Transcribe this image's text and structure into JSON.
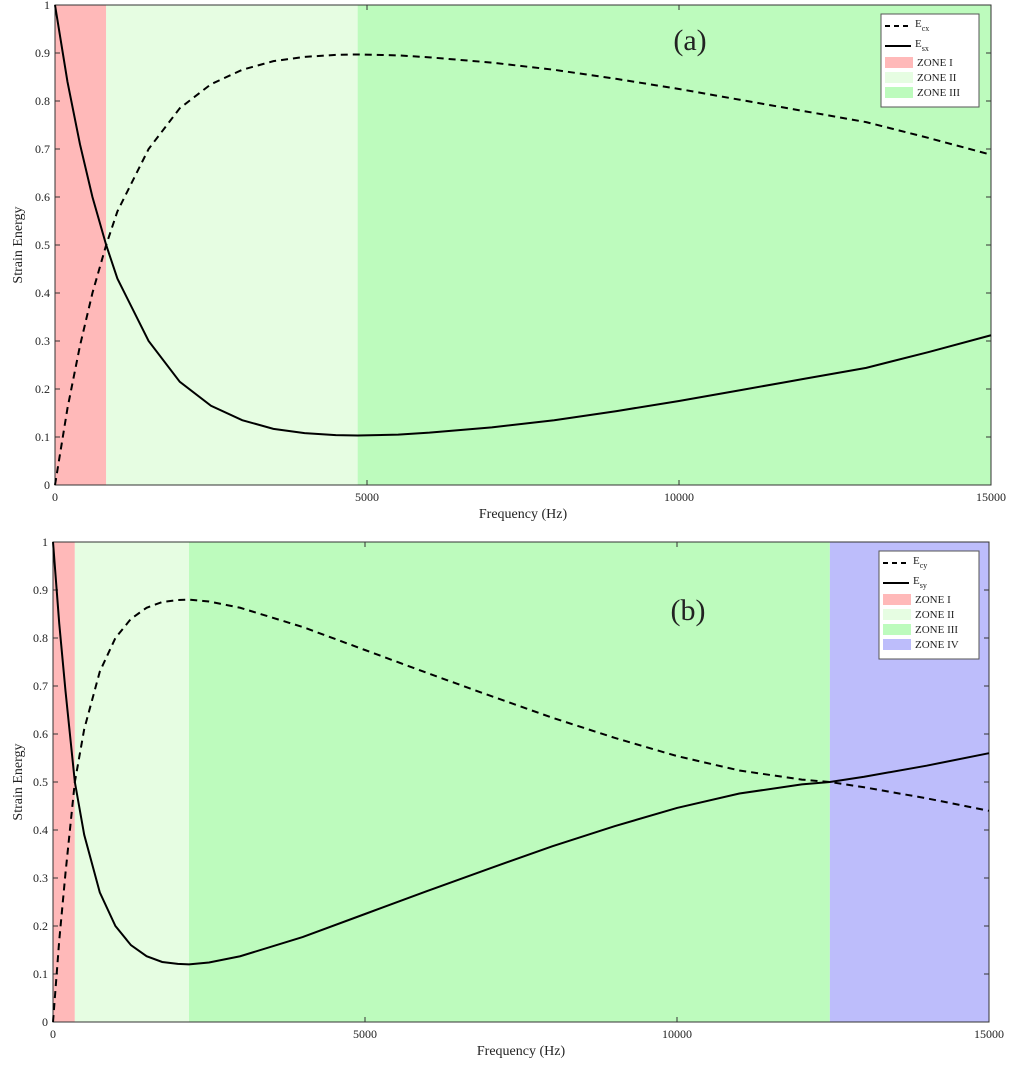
{
  "chart_data": [
    {
      "type": "line",
      "panel_label": "(a)",
      "xlabel": "Frequency (Hz)",
      "ylabel": "Strain Energy",
      "xlim": [
        0,
        15000
      ],
      "ylim": [
        0,
        1
      ],
      "x_ticks": [
        0,
        5000,
        10000,
        15000
      ],
      "x_tick_labels": [
        "0",
        "5000",
        "10000",
        "15000"
      ],
      "y_ticks": [
        0,
        0.1,
        0.2,
        0.3,
        0.4,
        0.5,
        0.6,
        0.7,
        0.8,
        0.9,
        1
      ],
      "y_tick_labels": [
        "0",
        "0.1",
        "0.2",
        "0.3",
        "0.4",
        "0.5",
        "0.6",
        "0.7",
        "0.8",
        "0.9",
        "1"
      ],
      "grid": false,
      "legend_position": "top-right",
      "zones": [
        {
          "name": "ZONE I",
          "x_start": 0,
          "x_end": 820,
          "color": "#ffb9b9"
        },
        {
          "name": "ZONE II",
          "x_start": 820,
          "x_end": 4850,
          "color": "#e6fde2"
        },
        {
          "name": "ZONE III",
          "x_start": 4850,
          "x_end": 15000,
          "color": "#bdfbbd"
        }
      ],
      "series": [
        {
          "name": "E",
          "sub": "cx",
          "style": "dashed",
          "color": "#000000",
          "x": [
            0,
            200,
            400,
            600,
            820,
            1000,
            1500,
            2000,
            2500,
            3000,
            3500,
            4000,
            4500,
            4850,
            5500,
            6000,
            7000,
            8000,
            9000,
            10000,
            11000,
            12000,
            13000,
            14000,
            15000
          ],
          "y": [
            0,
            0.16,
            0.29,
            0.4,
            0.5,
            0.57,
            0.7,
            0.785,
            0.835,
            0.865,
            0.883,
            0.892,
            0.896,
            0.897,
            0.895,
            0.891,
            0.88,
            0.865,
            0.846,
            0.825,
            0.802,
            0.779,
            0.756,
            0.723,
            0.688
          ]
        },
        {
          "name": "E",
          "sub": "sx",
          "style": "solid",
          "color": "#000000",
          "x": [
            0,
            200,
            400,
            600,
            820,
            1000,
            1500,
            2000,
            2500,
            3000,
            3500,
            4000,
            4500,
            4850,
            5500,
            6000,
            7000,
            8000,
            9000,
            10000,
            11000,
            12000,
            13000,
            14000,
            15000
          ],
          "y": [
            1,
            0.84,
            0.71,
            0.6,
            0.5,
            0.43,
            0.3,
            0.215,
            0.165,
            0.135,
            0.117,
            0.108,
            0.104,
            0.103,
            0.105,
            0.109,
            0.12,
            0.135,
            0.154,
            0.175,
            0.198,
            0.221,
            0.244,
            0.277,
            0.312
          ]
        }
      ]
    },
    {
      "type": "line",
      "panel_label": "(b)",
      "xlabel": "Frequency (Hz)",
      "ylabel": "Strain Energy",
      "xlim": [
        0,
        15000
      ],
      "ylim": [
        0,
        1
      ],
      "x_ticks": [
        0,
        5000,
        10000,
        15000
      ],
      "x_tick_labels": [
        "0",
        "5000",
        "10000",
        "15000"
      ],
      "y_ticks": [
        0,
        0.1,
        0.2,
        0.3,
        0.4,
        0.5,
        0.6,
        0.7,
        0.8,
        0.9,
        1
      ],
      "y_tick_labels": [
        "0",
        "0.1",
        "0.2",
        "0.3",
        "0.4",
        "0.5",
        "0.6",
        "0.7",
        "0.8",
        "0.9",
        "1"
      ],
      "grid": false,
      "legend_position": "top-right",
      "zones": [
        {
          "name": "ZONE I",
          "x_start": 0,
          "x_end": 350,
          "color": "#ffb9b9"
        },
        {
          "name": "ZONE II",
          "x_start": 350,
          "x_end": 2180,
          "color": "#e6fde2"
        },
        {
          "name": "ZONE III",
          "x_start": 2180,
          "x_end": 12450,
          "color": "#bdfbbd"
        },
        {
          "name": "ZONE IV",
          "x_start": 12450,
          "x_end": 15000,
          "color": "#bdbdfb"
        }
      ],
      "series": [
        {
          "name": "E",
          "sub": "cy",
          "style": "dashed",
          "color": "#000000",
          "x": [
            0,
            100,
            200,
            350,
            500,
            750,
            1000,
            1250,
            1500,
            1750,
            2000,
            2180,
            2500,
            3000,
            4000,
            5000,
            6000,
            7000,
            8000,
            9000,
            10000,
            11000,
            12000,
            12450,
            13000,
            14000,
            15000
          ],
          "y": [
            0,
            0.17,
            0.31,
            0.5,
            0.61,
            0.73,
            0.8,
            0.84,
            0.863,
            0.875,
            0.879,
            0.88,
            0.876,
            0.863,
            0.823,
            0.775,
            0.727,
            0.68,
            0.634,
            0.592,
            0.554,
            0.524,
            0.505,
            0.5,
            0.489,
            0.466,
            0.44
          ]
        },
        {
          "name": "E",
          "sub": "sy",
          "style": "solid",
          "color": "#000000",
          "x": [
            0,
            100,
            200,
            350,
            500,
            750,
            1000,
            1250,
            1500,
            1750,
            2000,
            2180,
            2500,
            3000,
            4000,
            5000,
            6000,
            7000,
            8000,
            9000,
            10000,
            11000,
            12000,
            12450,
            13000,
            14000,
            15000
          ],
          "y": [
            1,
            0.83,
            0.69,
            0.5,
            0.39,
            0.27,
            0.2,
            0.16,
            0.137,
            0.125,
            0.121,
            0.12,
            0.124,
            0.137,
            0.177,
            0.225,
            0.273,
            0.32,
            0.366,
            0.408,
            0.446,
            0.476,
            0.495,
            0.5,
            0.511,
            0.534,
            0.56
          ]
        }
      ]
    }
  ]
}
